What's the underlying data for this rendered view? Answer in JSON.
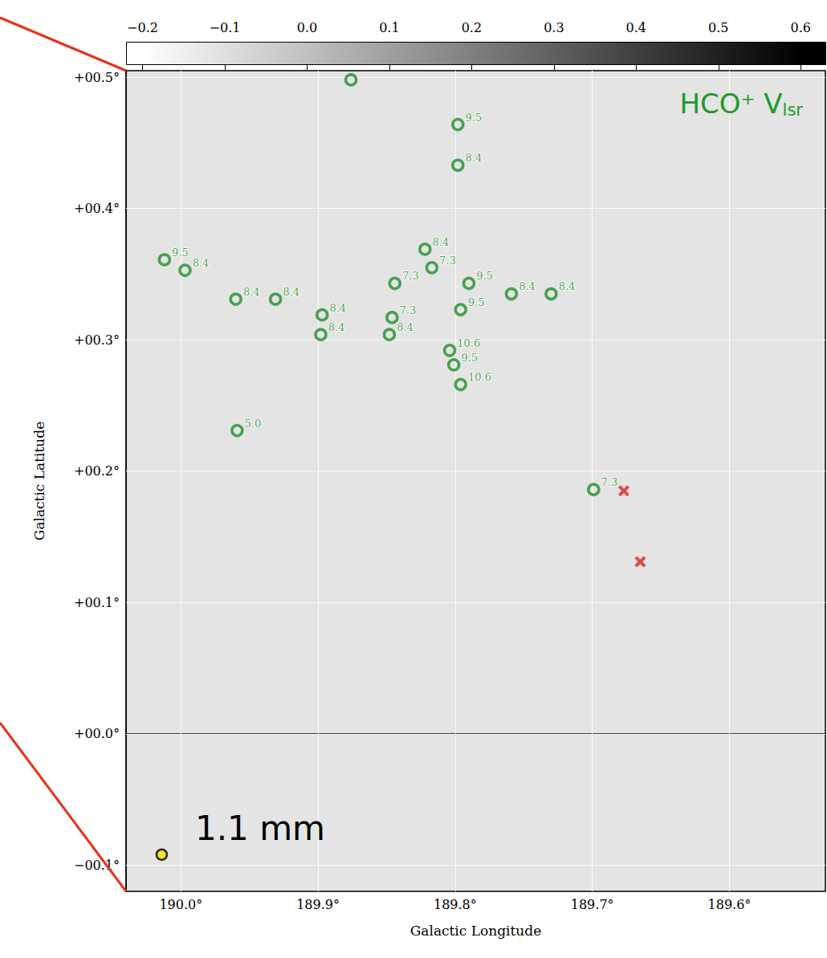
{
  "chart_data": {
    "type": "scatter",
    "xlabel": "Galactic Longitude",
    "ylabel": "Galactic Latitude",
    "xlim": [
      190.04,
      189.53
    ],
    "ylim": [
      -0.12,
      0.505
    ],
    "xticks": [
      {
        "value": 190.0,
        "label": "190.0°"
      },
      {
        "value": 189.9,
        "label": "189.9°"
      },
      {
        "value": 189.8,
        "label": "189.8°"
      },
      {
        "value": 189.7,
        "label": "189.7°"
      },
      {
        "value": 189.6,
        "label": "189.6°"
      }
    ],
    "yticks": [
      {
        "value": -0.1,
        "label": "−00.1°"
      },
      {
        "value": 0.0,
        "label": "+00.0°"
      },
      {
        "value": 0.1,
        "label": "+00.1°"
      },
      {
        "value": 0.2,
        "label": "+00.2°"
      },
      {
        "value": 0.3,
        "label": "+00.3°"
      },
      {
        "value": 0.4,
        "label": "+00.4°"
      },
      {
        "value": 0.5,
        "label": "+00.5°"
      }
    ],
    "grid": true,
    "annotations": [
      {
        "text": "HCO⁺ V",
        "subscript": "lsr",
        "color": "#1f9a2a"
      },
      {
        "text": "1.1 mm",
        "color": "#000000"
      }
    ],
    "colorbar": {
      "range": [
        -0.22,
        0.63
      ],
      "ticks": [
        {
          "value": -0.2,
          "label": "−0.2"
        },
        {
          "value": -0.1,
          "label": "−0.1"
        },
        {
          "value": 0.0,
          "label": "0.0"
        },
        0.1,
        0.2,
        0.3,
        0.4,
        0.5,
        0.6
      ]
    },
    "series": [
      {
        "marker": "ring",
        "color": "#1f8f2a",
        "x": [
          189.876,
          189.798,
          189.798,
          190.012,
          189.997,
          189.96,
          189.931,
          189.897,
          189.898,
          189.822,
          189.817,
          189.844,
          189.846,
          189.848,
          189.79,
          189.796,
          189.759,
          189.73,
          189.804,
          189.801,
          189.796,
          189.959,
          189.699
        ],
        "y": [
          0.498,
          0.464,
          0.433,
          0.361,
          0.353,
          0.331,
          0.331,
          0.319,
          0.304,
          0.369,
          0.355,
          0.343,
          0.317,
          0.304,
          0.343,
          0.323,
          0.335,
          0.335,
          0.292,
          0.281,
          0.266,
          0.231,
          0.186
        ],
        "labels": [
          null,
          "9.5",
          "8.4",
          "9.5",
          "8.4",
          "8.4",
          "8.4",
          "8.4",
          "8.4",
          "8.4",
          "7.3",
          "7.3",
          "7.3",
          "8.4",
          "9.5",
          "9.5",
          "8.4",
          "8.4",
          "10.6",
          "9.5",
          "10.6",
          "5.0",
          "7.3"
        ]
      },
      {
        "marker": "cross",
        "color": "#e02020",
        "x": [
          189.677,
          189.665
        ],
        "y": [
          0.185,
          0.131
        ]
      },
      {
        "marker": "dot",
        "color": "#f2e600",
        "x": [
          190.014
        ],
        "y": [
          -0.092
        ]
      }
    ]
  }
}
